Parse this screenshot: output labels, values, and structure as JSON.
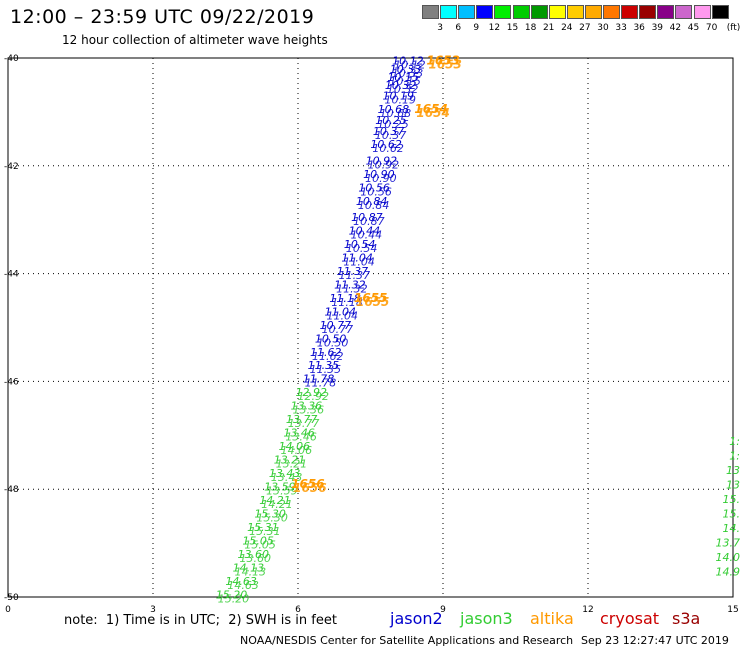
{
  "header": {
    "title": "12:00 – 23:59 UTC 09/22/2019",
    "subtitle": "12 hour collection of altimeter wave heights"
  },
  "colorbar": {
    "labels": [
      "3",
      "6",
      "9",
      "12",
      "15",
      "18",
      "21",
      "24",
      "27",
      "30",
      "33",
      "36",
      "39",
      "42",
      "45",
      "70"
    ],
    "unit": "(ft)",
    "colors": [
      "#808080",
      "#00ffff",
      "#00bfff",
      "#0000ff",
      "#00ee00",
      "#00cc00",
      "#009900",
      "#ffff00",
      "#ffcc00",
      "#ffaa00",
      "#ff7700",
      "#cc0000",
      "#990000",
      "#880088",
      "#cc66cc",
      "#ff99ee",
      "#000000"
    ]
  },
  "chart_data": {
    "type": "scatter",
    "title": "12 hour collection of altimeter wave heights",
    "xlabel": "",
    "ylabel": "",
    "xlim": [
      0,
      15
    ],
    "ylim": [
      -50,
      -40
    ],
    "x_ticks": [
      "0",
      "3",
      "6",
      "9",
      "12",
      "15"
    ],
    "y_ticks": [
      "-40",
      "-42",
      "-44",
      "-46",
      "-48",
      "-50"
    ],
    "grid": true,
    "series": [
      {
        "name": "jason2",
        "color": "#0000cc",
        "points": [
          {
            "x": 8.6,
            "y": -40.05,
            "label": "10.12"
          },
          {
            "x": 8.55,
            "y": -40.2,
            "label": "10.33"
          },
          {
            "x": 8.5,
            "y": -40.35,
            "label": "10.15"
          },
          {
            "x": 8.45,
            "y": -40.5,
            "label": "10.32"
          },
          {
            "x": 8.4,
            "y": -40.7,
            "label": "10.19"
          },
          {
            "x": 8.3,
            "y": -40.95,
            "label": "10.68"
          },
          {
            "x": 8.25,
            "y": -41.15,
            "label": "10.25"
          },
          {
            "x": 8.2,
            "y": -41.35,
            "label": "10.37"
          },
          {
            "x": 8.15,
            "y": -41.6,
            "label": "10.62"
          },
          {
            "x": 8.05,
            "y": -41.9,
            "label": "10.92"
          },
          {
            "x": 8.0,
            "y": -42.15,
            "label": "10.90"
          },
          {
            "x": 7.9,
            "y": -42.4,
            "label": "10.56"
          },
          {
            "x": 7.85,
            "y": -42.65,
            "label": "10.84"
          },
          {
            "x": 7.75,
            "y": -42.95,
            "label": "10.87"
          },
          {
            "x": 7.7,
            "y": -43.2,
            "label": "10.44"
          },
          {
            "x": 7.6,
            "y": -43.45,
            "label": "10.54"
          },
          {
            "x": 7.55,
            "y": -43.7,
            "label": "11.04"
          },
          {
            "x": 7.45,
            "y": -43.95,
            "label": "11.37"
          },
          {
            "x": 7.4,
            "y": -44.2,
            "label": "11.32"
          },
          {
            "x": 7.3,
            "y": -44.45,
            "label": "11.18"
          },
          {
            "x": 7.2,
            "y": -44.7,
            "label": "11.04"
          },
          {
            "x": 7.1,
            "y": -44.95,
            "label": "10.77"
          },
          {
            "x": 7.0,
            "y": -45.2,
            "label": "10.50"
          },
          {
            "x": 6.9,
            "y": -45.45,
            "label": "11.62"
          },
          {
            "x": 6.85,
            "y": -45.7,
            "label": "11.35"
          },
          {
            "x": 6.75,
            "y": -45.95,
            "label": "11.78"
          }
        ]
      },
      {
        "name": "jason3",
        "color": "#33cc33",
        "points": [
          {
            "x": 6.6,
            "y": -46.2,
            "label": "12.92"
          },
          {
            "x": 6.5,
            "y": -46.45,
            "label": "13.36"
          },
          {
            "x": 6.4,
            "y": -46.7,
            "label": "13.77"
          },
          {
            "x": 6.35,
            "y": -46.95,
            "label": "13.46"
          },
          {
            "x": 6.25,
            "y": -47.2,
            "label": "14.06"
          },
          {
            "x": 6.15,
            "y": -47.45,
            "label": "13.21"
          },
          {
            "x": 6.05,
            "y": -47.7,
            "label": "13.43"
          },
          {
            "x": 5.95,
            "y": -47.95,
            "label": "13.59"
          },
          {
            "x": 5.85,
            "y": -48.2,
            "label": "14.21"
          },
          {
            "x": 5.75,
            "y": -48.45,
            "label": "15.30"
          },
          {
            "x": 5.6,
            "y": -48.7,
            "label": "15.31"
          },
          {
            "x": 5.5,
            "y": -48.95,
            "label": "15.05"
          },
          {
            "x": 5.4,
            "y": -49.2,
            "label": "13.60"
          },
          {
            "x": 5.3,
            "y": -49.45,
            "label": "14.13"
          },
          {
            "x": 5.15,
            "y": -49.7,
            "label": "14.63"
          },
          {
            "x": 4.95,
            "y": -49.95,
            "label": "15.20"
          }
        ]
      },
      {
        "name": "altika",
        "color": "#ff9900",
        "points": [
          {
            "x": 9.35,
            "y": -40.05,
            "label": "1653"
          },
          {
            "x": 9.1,
            "y": -40.95,
            "label": "1654"
          },
          {
            "x": 7.85,
            "y": -44.45,
            "label": "1655"
          },
          {
            "x": 6.55,
            "y": -47.9,
            "label": "1656"
          }
        ]
      },
      {
        "name": "cryosat",
        "color": "#cc0000",
        "points": []
      },
      {
        "name": "s3a",
        "color": "#990000",
        "points": []
      }
    ]
  },
  "edge_labels": {
    "color": "#33cc33",
    "texts": [
      "1:",
      "1:",
      "13",
      "13",
      "15.",
      "15.",
      "14.",
      "13.7",
      "14.0",
      "14.9"
    ]
  },
  "legend": [
    {
      "label": "jason2",
      "color": "#0000cc"
    },
    {
      "label": "jason3",
      "color": "#33cc33"
    },
    {
      "label": "altika",
      "color": "#ff9900"
    },
    {
      "label": "cryosat",
      "color": "#cc0000"
    },
    {
      "label": "s3a",
      "color": "#990000"
    }
  ],
  "footer": {
    "note": "note:  1) Time is in UTC;  2) SWH is in feet",
    "credit": "NOAA/NESDIS Center for Satellite Applications and Research",
    "timestamp": "Sep 23 12:27:47 UTC 2019"
  }
}
